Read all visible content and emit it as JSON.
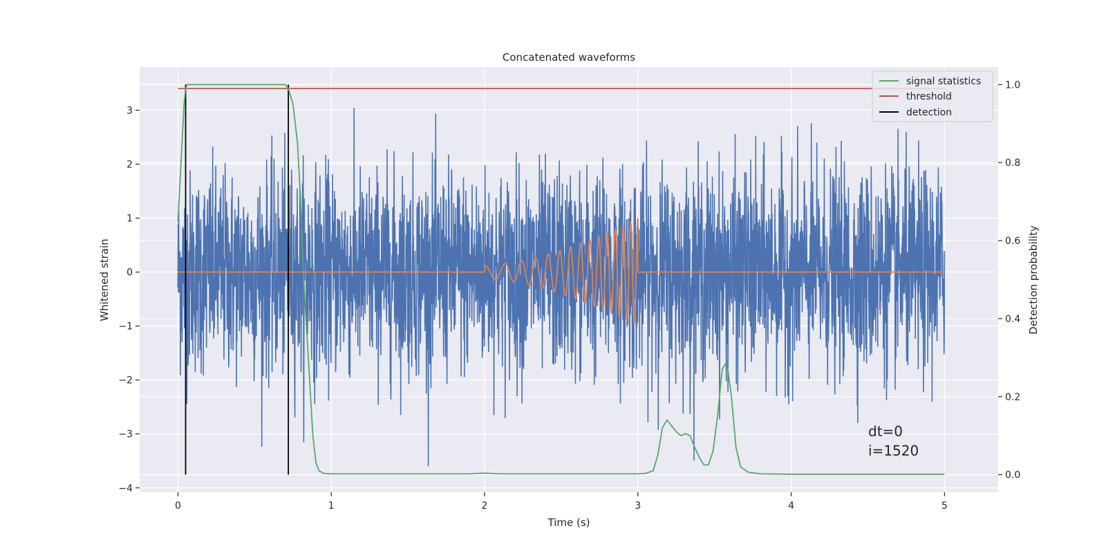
{
  "chart_data": {
    "type": "line",
    "title": "Concatenated waveforms",
    "xlabel": "Time (s)",
    "ylabel": "Whitened strain",
    "y2label": "Detection probability",
    "xlim": [
      -0.25,
      5.35
    ],
    "ylim": [
      -4.08,
      3.8
    ],
    "y2lim": [
      -0.045,
      1.045
    ],
    "xticks": [
      0,
      1,
      2,
      3,
      4,
      5
    ],
    "xtick_labels": [
      "0",
      "1",
      "2",
      "3",
      "4",
      "5"
    ],
    "yticks": [
      -4,
      -3,
      -2,
      -1,
      0,
      1,
      2,
      3
    ],
    "ytick_labels": [
      "−4",
      "−3",
      "−2",
      "−1",
      "0",
      "1",
      "2",
      "3"
    ],
    "y2ticks": [
      0,
      0.2,
      0.4,
      0.6,
      0.8,
      1.0
    ],
    "y2tick_labels": [
      "0.0",
      "0.2",
      "0.4",
      "0.6",
      "0.8",
      "1.0"
    ],
    "grid": true,
    "legend_position": "top-right",
    "legend": [
      {
        "label": "signal statistics",
        "color": "#55a868"
      },
      {
        "label": "threshold",
        "color": "#c44e52"
      },
      {
        "label": "detection",
        "color": "#000000"
      }
    ],
    "annotation": [
      "dt=0",
      "i=1520"
    ],
    "noise_series": {
      "axis": "left",
      "color": "#4c72b0",
      "x_range": [
        0,
        5
      ],
      "typical_amplitude": 1.5,
      "peak_range": [
        -3.6,
        3.5
      ]
    },
    "injected_signal": {
      "axis": "left",
      "color": "#dd8452",
      "baseline": 0,
      "chirp_window": [
        2.0,
        3.0
      ],
      "peaks": [
        {
          "x": 2.02,
          "y": 0.12
        },
        {
          "x": 2.2,
          "y": 0.2
        },
        {
          "x": 2.35,
          "y": 0.3
        },
        {
          "x": 2.5,
          "y": 0.45
        },
        {
          "x": 2.65,
          "y": 0.55
        },
        {
          "x": 2.8,
          "y": 0.75
        },
        {
          "x": 2.95,
          "y": 1.0
        }
      ]
    },
    "series": [
      {
        "name": "signal statistics",
        "axis": "right",
        "color": "#55a868",
        "x": [
          0.0,
          0.02,
          0.04,
          0.05,
          0.06,
          0.08,
          0.1,
          0.3,
          0.6,
          0.7,
          0.72,
          0.75,
          0.78,
          0.8,
          0.82,
          0.85,
          0.88,
          0.9,
          0.92,
          0.95,
          1.0,
          1.5,
          1.9,
          2.0,
          2.1,
          2.5,
          2.9,
          3.0,
          3.05,
          3.1,
          3.13,
          3.16,
          3.19,
          3.22,
          3.25,
          3.28,
          3.31,
          3.34,
          3.37,
          3.4,
          3.43,
          3.46,
          3.49,
          3.52,
          3.55,
          3.58,
          3.61,
          3.64,
          3.67,
          3.72,
          3.8,
          4.0,
          4.5,
          5.0
        ],
        "y": [
          0.65,
          0.8,
          0.95,
          0.99,
          1.0,
          1.0,
          1.0,
          1.0,
          1.0,
          1.0,
          0.99,
          0.95,
          0.85,
          0.7,
          0.5,
          0.3,
          0.1,
          0.03,
          0.01,
          0.003,
          0.002,
          0.002,
          0.002,
          0.004,
          0.002,
          0.002,
          0.002,
          0.002,
          0.003,
          0.01,
          0.05,
          0.12,
          0.14,
          0.125,
          0.11,
          0.1,
          0.105,
          0.1,
          0.07,
          0.045,
          0.025,
          0.025,
          0.06,
          0.15,
          0.27,
          0.29,
          0.2,
          0.07,
          0.02,
          0.006,
          0.002,
          0.001,
          0.001,
          0.001
        ]
      },
      {
        "name": "threshold",
        "axis": "right",
        "color": "#c44e52",
        "x": [
          0,
          5
        ],
        "y": [
          0.99,
          0.99
        ]
      },
      {
        "name": "detection",
        "axis": "right",
        "color": "#000000",
        "verticals": [
          0.05,
          0.72
        ],
        "y_range": [
          0,
          1.0
        ]
      }
    ]
  }
}
